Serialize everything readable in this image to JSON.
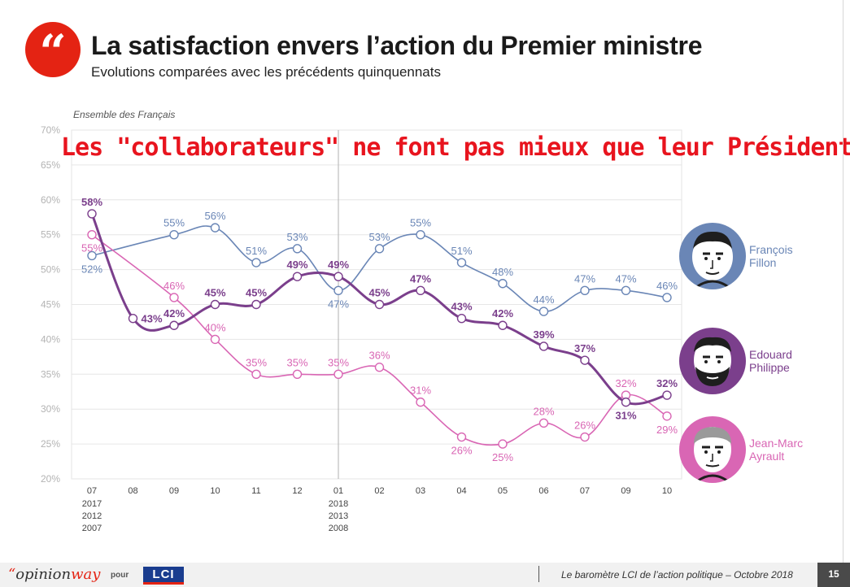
{
  "header": {
    "quote_glyph": "“",
    "title": "La satisfaction envers l’action du Premier ministre",
    "subtitle": "Evolutions comparées avec les précédents quinquennats"
  },
  "population": "Ensemble des Français",
  "annotation": "Les \"collaborateurs\" ne font pas mieux que leur Président",
  "legend": [
    {
      "line1": "François",
      "line2": "Fillon",
      "color": "#6a86b6"
    },
    {
      "line1": "Edouard",
      "line2": "Philippe",
      "color": "#7b3f8c"
    },
    {
      "line1": "Jean-Marc",
      "line2": "Ayrault",
      "color": "#d966b4"
    }
  ],
  "footer": {
    "brand_mark": "“",
    "brand_part1": "opinion",
    "brand_part2": "way",
    "pour": "pour",
    "lci": "LCI",
    "barometre": "Le baromètre LCI de l’action politique – Octobre 2018",
    "page_number": "15"
  },
  "chart_data": {
    "type": "line",
    "title": "La satisfaction envers l’action du Premier ministre",
    "ylim": [
      20,
      70
    ],
    "yticks": [
      20,
      25,
      30,
      35,
      40,
      45,
      50,
      55,
      60,
      65,
      70
    ],
    "tick_suffix": "%",
    "grid": true,
    "categories": [
      "07",
      "08",
      "09",
      "10",
      "11",
      "12",
      "01",
      "02",
      "03",
      "04",
      "05",
      "06",
      "07",
      "09",
      "10"
    ],
    "category_sublabels": [
      {
        "index": 0,
        "lines": [
          "2017",
          "2012",
          "2007"
        ]
      },
      {
        "index": 6,
        "lines": [
          "2018",
          "2013",
          "2008"
        ]
      }
    ],
    "separator_index": 6,
    "series": [
      {
        "name": "François Fillon",
        "color": "#6a86b6",
        "values": [
          52,
          null,
          55,
          56,
          51,
          53,
          47,
          53,
          55,
          51,
          48,
          44,
          47,
          47,
          46
        ],
        "labels": [
          "52%",
          null,
          "55%",
          "56%",
          "51%",
          "53%",
          "47%",
          "53%",
          "55%",
          "51%",
          "48%",
          "44%",
          "47%",
          "47%",
          "46%"
        ],
        "label_pos": [
          "below",
          null,
          "above",
          "above",
          "above",
          "above",
          "below",
          "above",
          "above",
          "above",
          "above",
          "above",
          "above",
          "above",
          "above"
        ]
      },
      {
        "name": "Edouard Philippe",
        "color": "#7b3f8c",
        "values": [
          58,
          43,
          42,
          45,
          45,
          49,
          49,
          45,
          47,
          43,
          42,
          39,
          37,
          31,
          32
        ],
        "labels": [
          "58%",
          "43%",
          "42%",
          "45%",
          "45%",
          "49%",
          "49%",
          "45%",
          "47%",
          "43%",
          "42%",
          "39%",
          "37%",
          "31%",
          "32%"
        ],
        "label_pos": [
          "above",
          "right",
          "above",
          "above",
          "above",
          "above",
          "above",
          "above",
          "above",
          "above",
          "above",
          "above",
          "above",
          "below",
          "above"
        ]
      },
      {
        "name": "Jean-Marc Ayrault",
        "color": "#d966b4",
        "values": [
          55,
          null,
          46,
          40,
          35,
          35,
          35,
          36,
          31,
          26,
          25,
          28,
          26,
          32,
          29
        ],
        "labels": [
          "55%",
          null,
          "46%",
          "40%",
          "35%",
          "35%",
          "35%",
          "36%",
          "31%",
          "26%",
          "25%",
          "28%",
          "26%",
          "32%",
          "29%"
        ],
        "label_pos": [
          "below",
          null,
          "above",
          "above",
          "above",
          "above",
          "above",
          "above",
          "above",
          "below",
          "below",
          "above",
          "above",
          "above",
          "below"
        ]
      }
    ]
  }
}
